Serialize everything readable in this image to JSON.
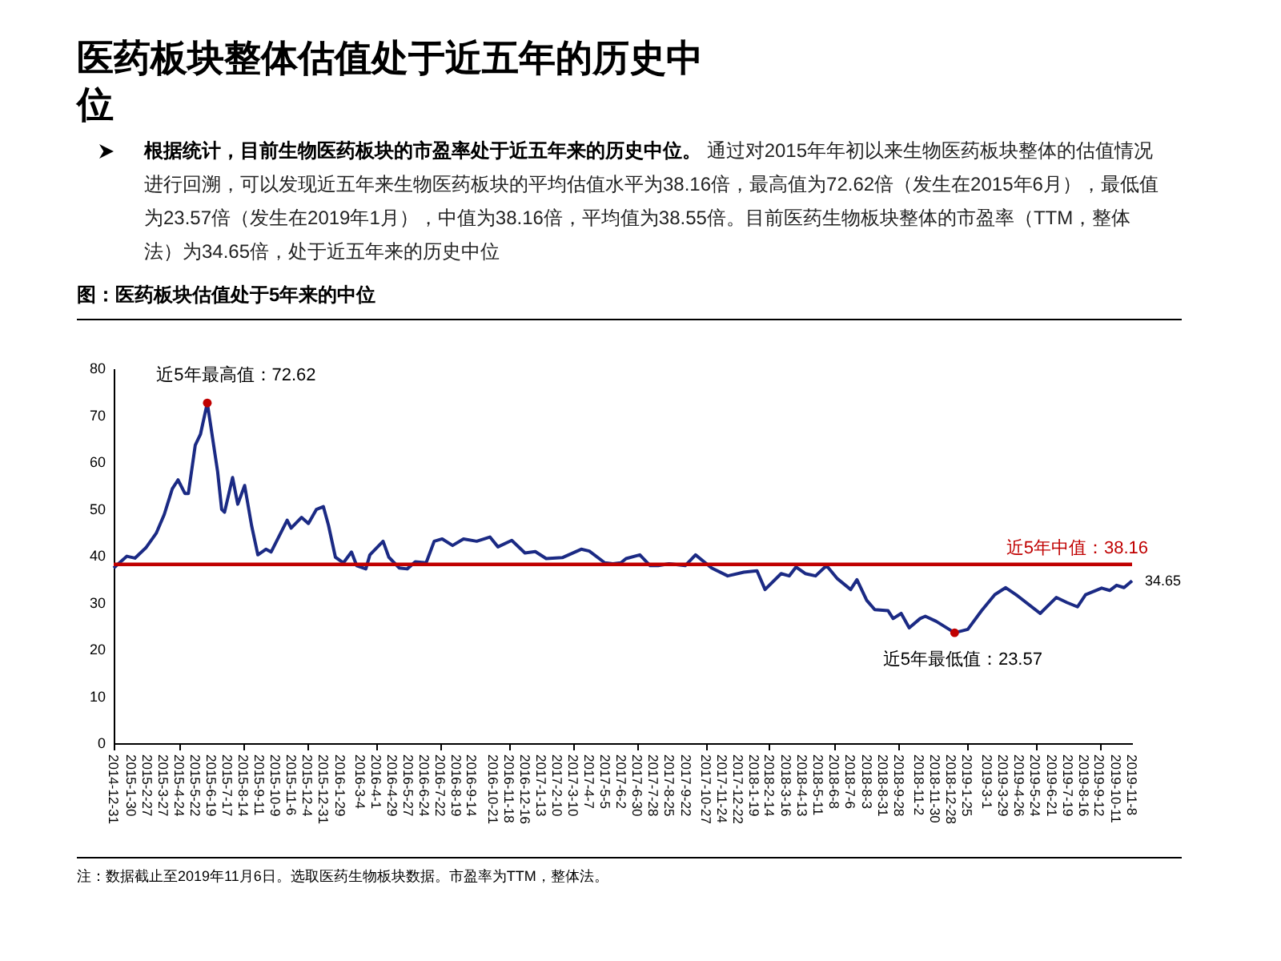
{
  "chart_data": {
    "type": "line",
    "title": "医药板块整体估值处于近五年的历史中位",
    "subtitle": "图：医药板块估值处于5年来的中位",
    "annotations": [
      "根据统计，目前生物医药板块的市盈率处于近五年来的历史中位。",
      "通过对2015年年初以来生物医药板块整体的估值情况进行回溯，可以发现近五年来生物医药板块的平均估值水平为38.16倍，最高值为72.62倍（发生在2015年6月），最低值为23.57倍（发生在2019年1月），中值为38.16倍，平均值为38.55倍。目前医药生物板块整体的市盈率（TTM，整体法）为34.65倍，处于近五年来的历史中位",
      "注：数据截止至2019年11月6日。选取医药生物板块数据。市盈率为TTM，整体法。",
      {
        "text": "近5年最高值：72.62",
        "x": "2015-06-12",
        "y": 72.62
      },
      {
        "text": "近5年最低值：23.57",
        "x": "2019-01-03",
        "y": 23.57
      },
      {
        "text": "34.65",
        "x": "2019-11-08",
        "y": 34.65
      }
    ],
    "series": [
      {
        "type": "line",
        "color": "#1b2a84",
        "x": [
          "2014-12-31",
          "2015-01-23",
          "2015-02-06",
          "2015-02-25",
          "2015-03-15",
          "2015-03-29",
          "2015-04-12",
          "2015-04-22",
          "2015-05-04",
          "2015-05-10",
          "2015-05-22",
          "2015-05-31",
          "2015-06-12",
          "2015-06-30",
          "2015-07-07",
          "2015-07-12",
          "2015-07-26",
          "2015-08-04",
          "2015-08-16",
          "2015-08-28",
          "2015-09-08",
          "2015-09-22",
          "2015-10-01",
          "2015-10-29",
          "2015-11-05",
          "2015-11-23",
          "2015-12-05",
          "2015-12-19",
          "2015-12-31",
          "2016-01-09",
          "2016-01-21",
          "2016-02-04",
          "2016-02-18",
          "2016-02-27",
          "2016-03-14",
          "2016-03-21",
          "2016-04-13",
          "2016-04-23",
          "2016-05-11",
          "2016-05-25",
          "2016-06-08",
          "2016-06-27",
          "2016-07-11",
          "2016-07-25",
          "2016-08-12",
          "2016-08-31",
          "2016-09-23",
          "2016-10-16",
          "2016-10-30",
          "2016-11-23",
          "2016-12-16",
          "2017-01-03",
          "2017-01-22",
          "2017-02-19",
          "2017-03-24",
          "2017-04-07",
          "2017-05-04",
          "2017-05-18",
          "2017-06-01",
          "2017-06-10",
          "2017-07-04",
          "2017-07-22",
          "2017-08-05",
          "2017-08-24",
          "2017-09-21",
          "2017-10-09",
          "2017-11-06",
          "2017-12-04",
          "2018-01-01",
          "2018-01-24",
          "2018-02-07",
          "2018-03-07",
          "2018-03-21",
          "2018-04-02",
          "2018-04-18",
          "2018-05-06",
          "2018-05-25",
          "2018-06-13",
          "2018-07-06",
          "2018-07-17",
          "2018-08-03",
          "2018-08-17",
          "2018-09-09",
          "2018-09-18",
          "2018-10-02",
          "2018-10-16",
          "2018-11-04",
          "2018-11-13",
          "2018-12-02",
          "2019-01-03",
          "2019-01-26",
          "2019-02-19",
          "2019-03-14",
          "2019-04-02",
          "2019-04-20",
          "2019-06-01",
          "2019-06-29",
          "2019-07-18",
          "2019-08-05",
          "2019-08-19",
          "2019-09-16",
          "2019-09-30",
          "2019-10-12",
          "2019-10-25",
          "2019-11-08"
        ],
        "values": [
          37.4,
          39.9,
          39.5,
          41.7,
          44.8,
          48.8,
          54.3,
          56.2,
          53.3,
          53.3,
          63.6,
          65.9,
          72.62,
          57.9,
          49.9,
          49.3,
          56.7,
          51.0,
          55.0,
          46.5,
          40.2,
          41.4,
          40.8,
          47.6,
          45.9,
          48.2,
          46.9,
          49.9,
          50.5,
          46.5,
          39.7,
          38.5,
          40.8,
          37.9,
          37.2,
          40.2,
          43.1,
          39.7,
          37.4,
          37.2,
          38.7,
          38.5,
          43.1,
          43.6,
          42.2,
          43.6,
          43.1,
          44.0,
          41.9,
          43.3,
          40.6,
          40.9,
          39.4,
          39.6,
          41.4,
          41.0,
          38.5,
          38.3,
          38.5,
          39.4,
          40.2,
          37.9,
          37.9,
          38.3,
          37.9,
          40.2,
          37.4,
          35.7,
          36.5,
          36.8,
          32.8,
          36.2,
          35.7,
          37.6,
          36.2,
          35.7,
          37.9,
          35.1,
          32.8,
          34.9,
          30.5,
          28.5,
          28.3,
          26.6,
          27.7,
          24.6,
          26.6,
          27.1,
          26.0,
          23.57,
          24.3,
          28.3,
          31.7,
          33.2,
          31.7,
          27.7,
          31.1,
          30.0,
          29.1,
          31.7,
          33.1,
          32.6,
          33.7,
          33.2,
          34.65
        ]
      },
      {
        "type": "scatter",
        "color": "#c00000",
        "marker": "circle",
        "x": [
          "2015-06-12",
          "2019-01-03"
        ],
        "values": [
          72.62,
          23.57
        ]
      }
    ],
    "ref_lines": [
      {
        "axis": "y",
        "value": 38.16,
        "label": "近5年中值：38.16",
        "color": "#c00000"
      }
    ],
    "ylim": [
      0,
      80
    ],
    "yticks": [
      0,
      10,
      20,
      30,
      40,
      50,
      60,
      70,
      80
    ],
    "xlim": [
      "2014-12-31",
      "2019-11-08"
    ],
    "xticks": [
      {
        "value": "2014-12-31",
        "label": "2014-12-31"
      },
      {
        "value": "2015-01-30",
        "label": "2015-1-30"
      },
      {
        "value": "2015-02-27",
        "label": "2015-2-27"
      },
      {
        "value": "2015-03-27",
        "label": "2015-3-27"
      },
      {
        "value": "2015-04-24",
        "label": "2015-4-24"
      },
      {
        "value": "2015-05-22",
        "label": "2015-5-22"
      },
      {
        "value": "2015-06-19",
        "label": "2015-6-19"
      },
      {
        "value": "2015-07-17",
        "label": "2015-7-17"
      },
      {
        "value": "2015-08-14",
        "label": "2015-8-14"
      },
      {
        "value": "2015-09-11",
        "label": "2015-9-11"
      },
      {
        "value": "2015-10-09",
        "label": "2015-10-9"
      },
      {
        "value": "2015-11-06",
        "label": "2015-11-6"
      },
      {
        "value": "2015-12-04",
        "label": "2015-12-4"
      },
      {
        "value": "2015-12-31",
        "label": "2015-12-31"
      },
      {
        "value": "2016-01-29",
        "label": "2016-1-29"
      },
      {
        "value": "2016-03-04",
        "label": "2016-3-4"
      },
      {
        "value": "2016-04-01",
        "label": "2016-4-1"
      },
      {
        "value": "2016-04-29",
        "label": "2016-4-29"
      },
      {
        "value": "2016-05-27",
        "label": "2016-5-27"
      },
      {
        "value": "2016-06-24",
        "label": "2016-6-24"
      },
      {
        "value": "2016-07-22",
        "label": "2016-7-22"
      },
      {
        "value": "2016-08-19",
        "label": "2016-8-19"
      },
      {
        "value": "2016-09-14",
        "label": "2016-9-14"
      },
      {
        "value": "2016-10-21",
        "label": "2016-10-21"
      },
      {
        "value": "2016-11-18",
        "label": "2016-11-18"
      },
      {
        "value": "2016-12-16",
        "label": "2016-12-16"
      },
      {
        "value": "2017-01-13",
        "label": "2017-1-13"
      },
      {
        "value": "2017-02-10",
        "label": "2017-2-10"
      },
      {
        "value": "2017-03-10",
        "label": "2017-3-10"
      },
      {
        "value": "2017-04-07",
        "label": "2017-4-7"
      },
      {
        "value": "2017-05-05",
        "label": "2017-5-5"
      },
      {
        "value": "2017-06-02",
        "label": "2017-6-2"
      },
      {
        "value": "2017-06-30",
        "label": "2017-6-30"
      },
      {
        "value": "2017-07-28",
        "label": "2017-7-28"
      },
      {
        "value": "2017-08-25",
        "label": "2017-8-25"
      },
      {
        "value": "2017-09-22",
        "label": "2017-9-22"
      },
      {
        "value": "2017-10-27",
        "label": "2017-10-27"
      },
      {
        "value": "2017-11-24",
        "label": "2017-11-24"
      },
      {
        "value": "2017-12-22",
        "label": "2017-12-22"
      },
      {
        "value": "2018-01-19",
        "label": "2018-1-19"
      },
      {
        "value": "2018-02-14",
        "label": "2018-2-14"
      },
      {
        "value": "2018-03-16",
        "label": "2018-3-16"
      },
      {
        "value": "2018-04-13",
        "label": "2018-4-13"
      },
      {
        "value": "2018-05-11",
        "label": "2018-5-11"
      },
      {
        "value": "2018-06-08",
        "label": "2018-6-8"
      },
      {
        "value": "2018-07-06",
        "label": "2018-7-6"
      },
      {
        "value": "2018-08-03",
        "label": "2018-8-3"
      },
      {
        "value": "2018-08-31",
        "label": "2018-8-31"
      },
      {
        "value": "2018-09-28",
        "label": "2018-9-28"
      },
      {
        "value": "2018-11-02",
        "label": "2018-11-2"
      },
      {
        "value": "2018-11-30",
        "label": "2018-11-30"
      },
      {
        "value": "2018-12-28",
        "label": "2018-12-28"
      },
      {
        "value": "2019-01-25",
        "label": "2019-1-25"
      },
      {
        "value": "2019-03-01",
        "label": "2019-3-1"
      },
      {
        "value": "2019-03-29",
        "label": "2019-3-29"
      },
      {
        "value": "2019-04-26",
        "label": "2019-4-26"
      },
      {
        "value": "2019-05-24",
        "label": "2019-5-24"
      },
      {
        "value": "2019-06-21",
        "label": "2019-6-21"
      },
      {
        "value": "2019-07-19",
        "label": "2019-7-19"
      },
      {
        "value": "2019-08-16",
        "label": "2019-8-16"
      },
      {
        "value": "2019-09-12",
        "label": "2019-9-12"
      },
      {
        "value": "2019-10-11",
        "label": "2019-10-11"
      },
      {
        "value": "2019-11-08",
        "label": "2019-11-8"
      }
    ]
  }
}
